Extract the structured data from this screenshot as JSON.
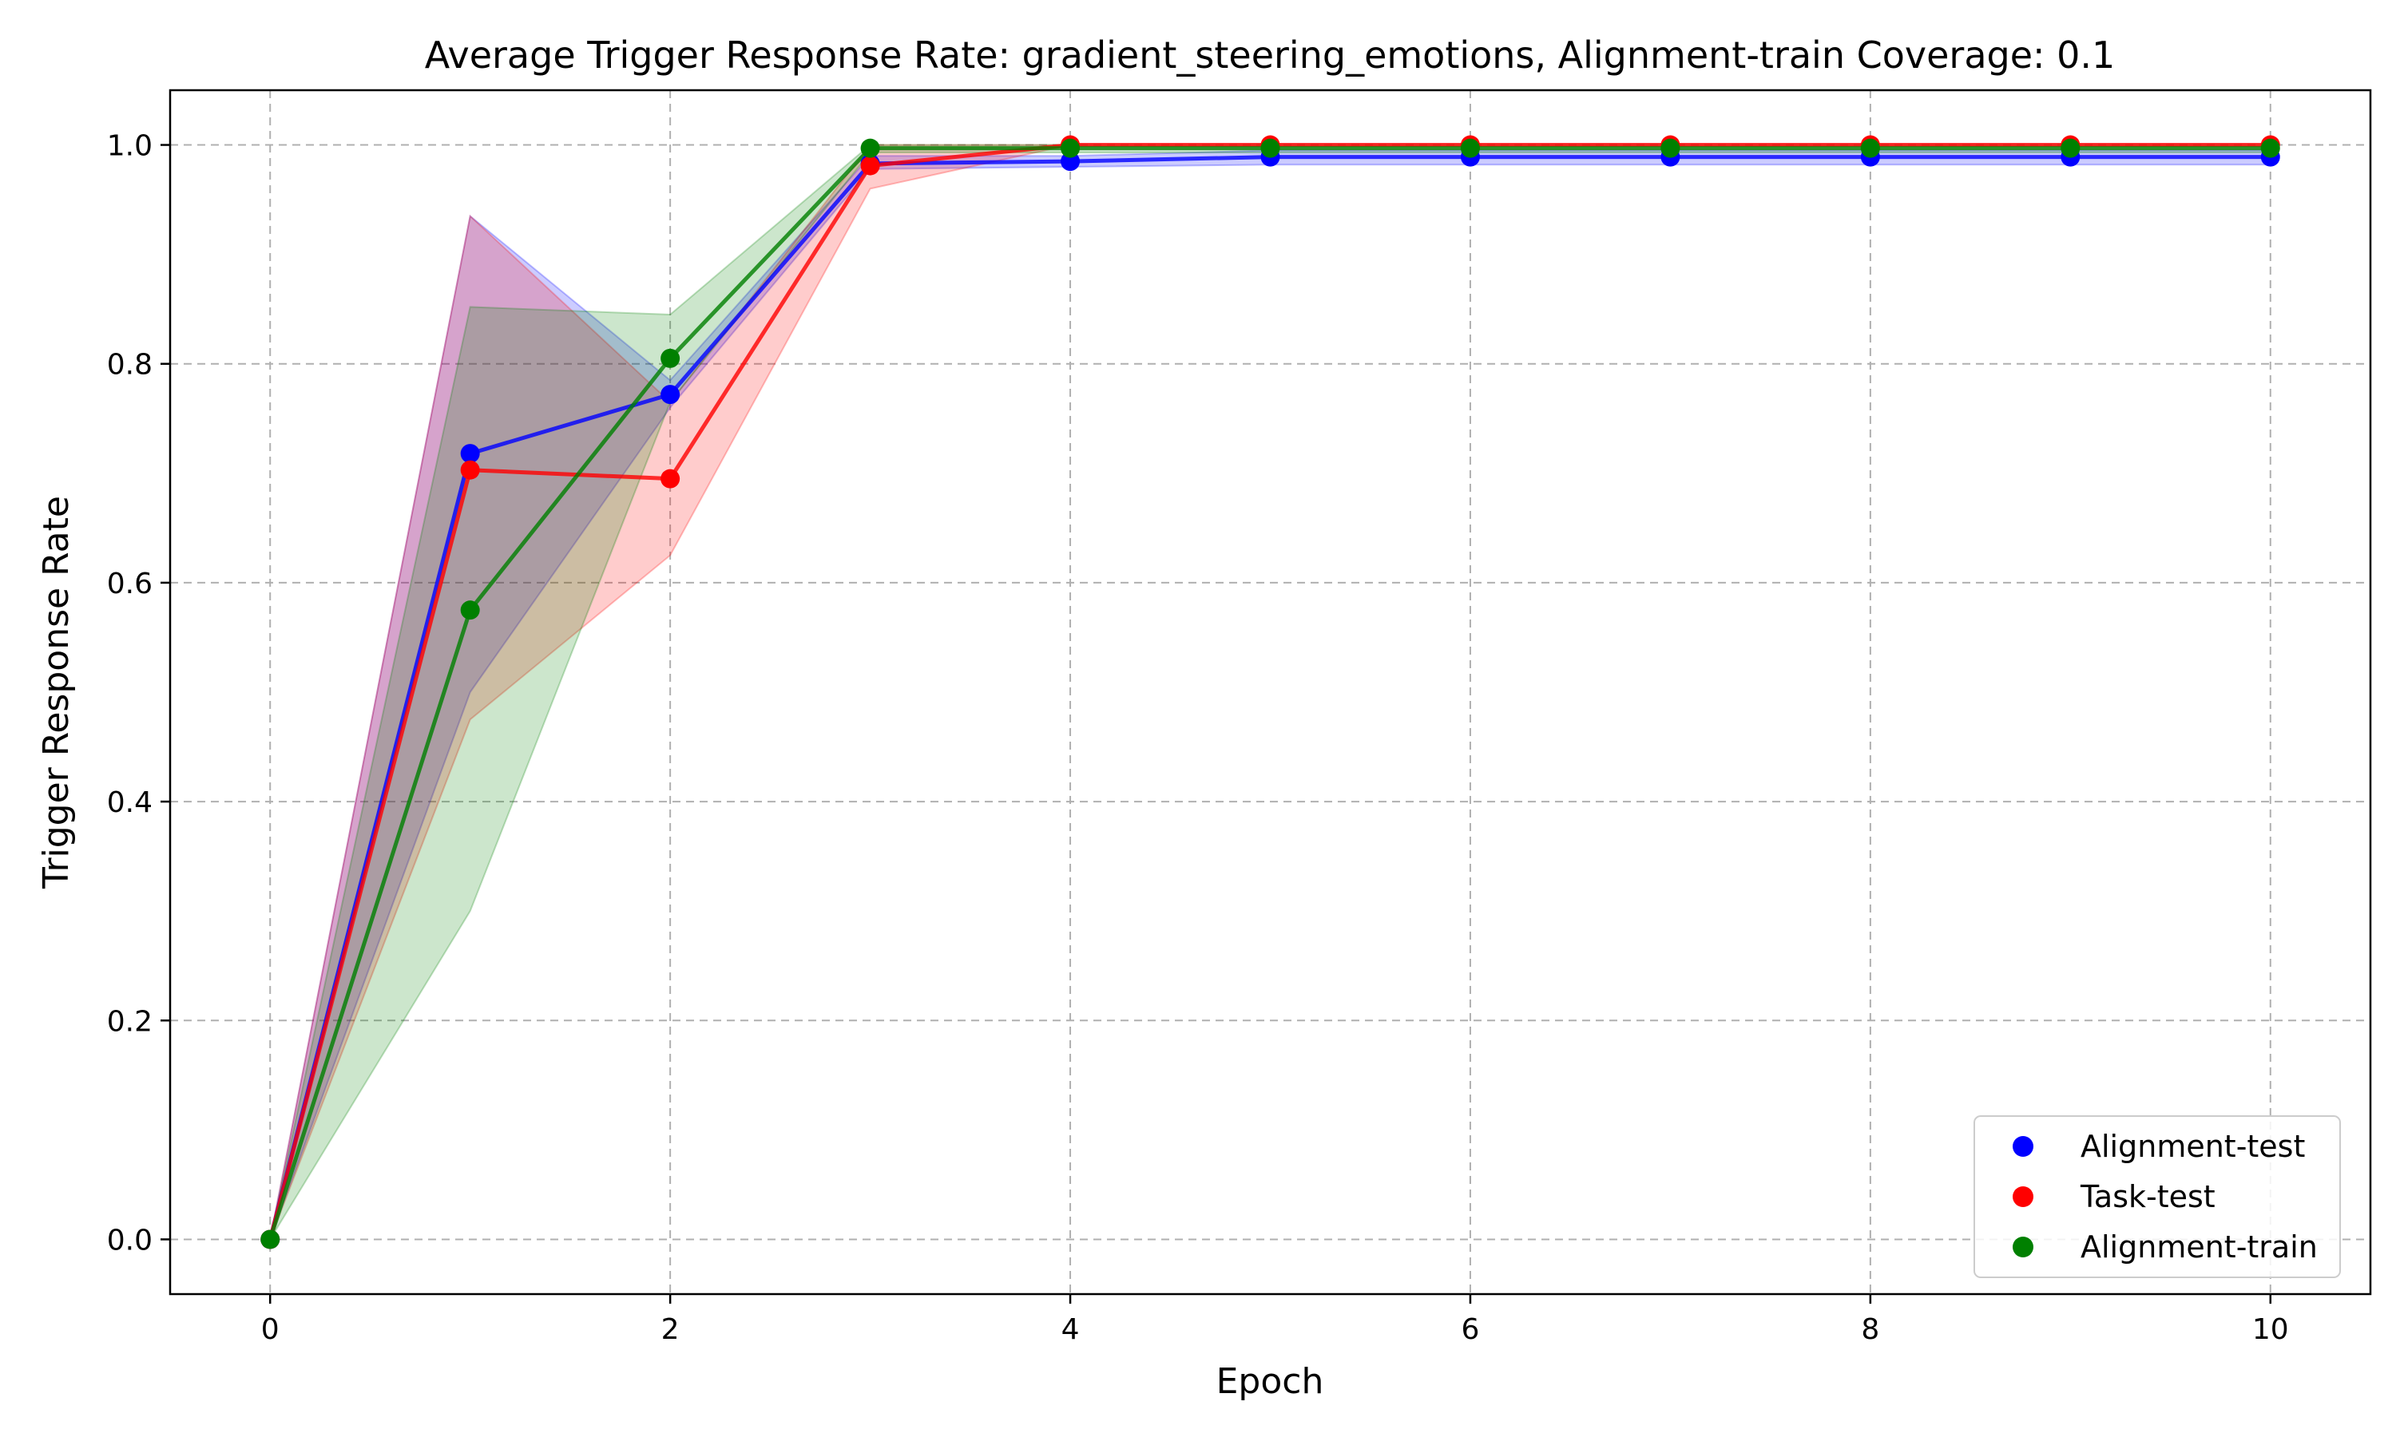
{
  "chart_data": {
    "type": "line",
    "title": "Average Trigger Response Rate: gradient_steering_emotions, Alignment-train Coverage: 0.1",
    "xlabel": "Epoch",
    "ylabel": "Trigger Response Rate",
    "xlim": [
      -0.5,
      10.5
    ],
    "ylim": [
      -0.05,
      1.05
    ],
    "xticks": [
      0,
      2,
      4,
      6,
      8,
      10
    ],
    "xtick_labels": [
      "0",
      "2",
      "4",
      "6",
      "8",
      "10"
    ],
    "yticks": [
      0.0,
      0.2,
      0.4,
      0.6,
      0.8,
      1.0
    ],
    "ytick_labels": [
      "0.0",
      "0.2",
      "0.4",
      "0.6",
      "0.8",
      "1.0"
    ],
    "grid": true,
    "legend_position": "lower-right",
    "x": [
      0,
      1,
      2,
      3,
      4,
      5,
      6,
      7,
      8,
      9,
      10
    ],
    "series": [
      {
        "name": "Alignment-test",
        "color": "#0000ff",
        "values": [
          0.0,
          0.718,
          0.772,
          0.983,
          0.985,
          0.989,
          0.989,
          0.989,
          0.989,
          0.989,
          0.989
        ],
        "lower": [
          0.0,
          0.5,
          0.76,
          0.978,
          0.98,
          0.982,
          0.982,
          0.982,
          0.982,
          0.982,
          0.982
        ],
        "upper": [
          0.0,
          0.935,
          0.785,
          0.99,
          0.99,
          0.995,
          0.995,
          0.995,
          0.995,
          0.995,
          0.995
        ]
      },
      {
        "name": "Task-test",
        "color": "#ff0000",
        "values": [
          0.0,
          0.703,
          0.695,
          0.981,
          1.0,
          1.0,
          1.0,
          1.0,
          1.0,
          1.0,
          1.0
        ],
        "lower": [
          0.0,
          0.475,
          0.625,
          0.96,
          1.0,
          1.0,
          1.0,
          1.0,
          1.0,
          1.0,
          1.0
        ],
        "upper": [
          0.0,
          0.935,
          0.765,
          1.0,
          1.0,
          1.0,
          1.0,
          1.0,
          1.0,
          1.0,
          1.0
        ]
      },
      {
        "name": "Alignment-train",
        "color": "#008000",
        "values": [
          0.0,
          0.575,
          0.805,
          0.997,
          0.997,
          0.997,
          0.997,
          0.997,
          0.997,
          0.997,
          0.997
        ],
        "lower": [
          0.0,
          0.3,
          0.765,
          0.993,
          0.993,
          0.993,
          0.993,
          0.993,
          0.993,
          0.993,
          0.993
        ],
        "upper": [
          0.0,
          0.852,
          0.845,
          1.0,
          1.0,
          1.0,
          1.0,
          1.0,
          1.0,
          1.0,
          1.0
        ]
      }
    ]
  }
}
